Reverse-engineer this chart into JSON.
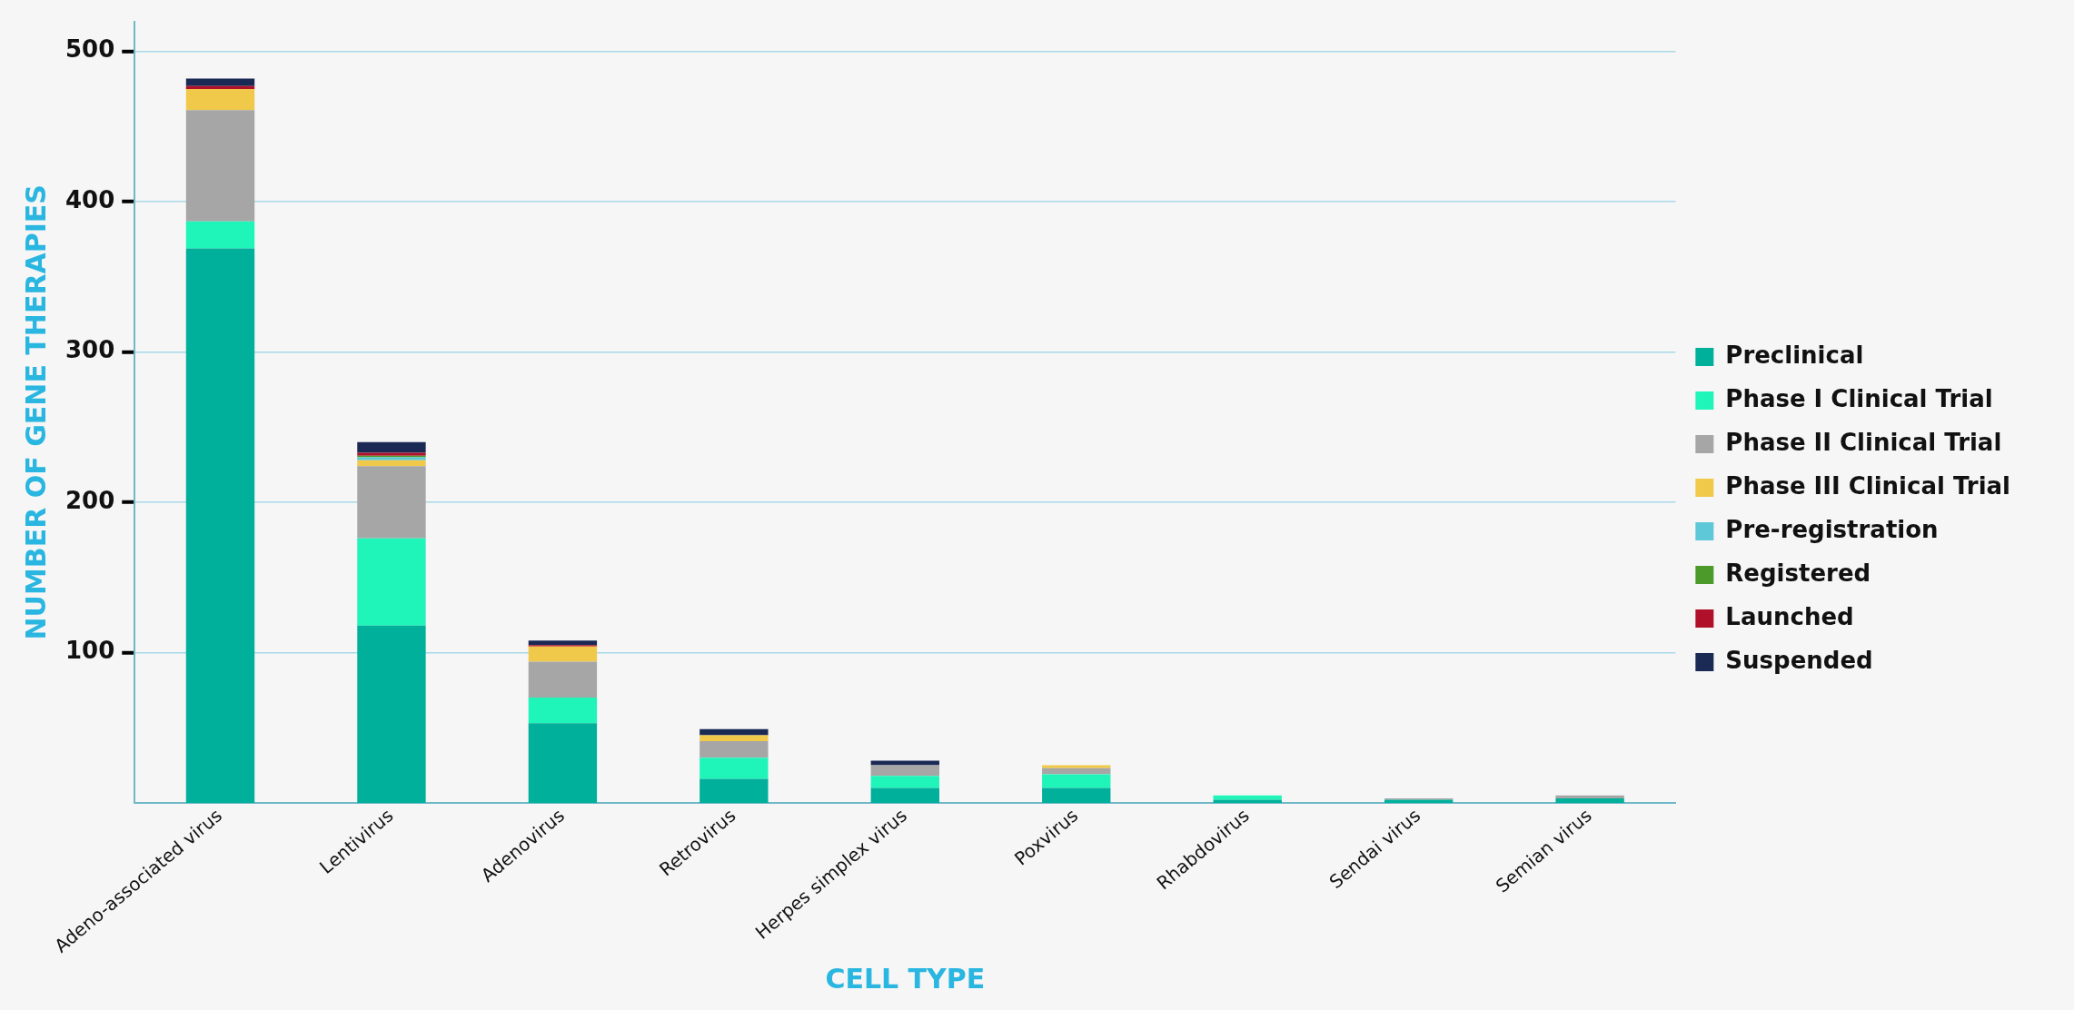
{
  "chart_data": {
    "type": "bar",
    "stacked": true,
    "xlabel": "CELL TYPE",
    "ylabel": "NUMBER OF GENE THERAPIES",
    "categories": [
      "Adeno-associated virus",
      "Lentivirus",
      "Adenovirus",
      "Retrovirus",
      "Herpes simplex virus",
      "Poxvirus",
      "Rhabdovirus",
      "Sendai virus",
      "Semian virus"
    ],
    "series": [
      {
        "name": "Preclinical",
        "color": "#00b09b",
        "values": [
          369,
          118,
          53,
          16,
          10,
          10,
          2,
          2,
          3
        ]
      },
      {
        "name": "Phase I Clinical Trial",
        "color": "#1ff5b8",
        "values": [
          18,
          58,
          17,
          14,
          8,
          9,
          3,
          0,
          0
        ]
      },
      {
        "name": "Phase II Clinical Trial",
        "color": "#a6a6a6",
        "values": [
          74,
          48,
          24,
          11,
          7,
          4,
          0,
          1,
          2
        ]
      },
      {
        "name": "Phase III Clinical Trial",
        "color": "#f0c94a",
        "values": [
          14,
          4,
          10,
          4,
          0,
          2,
          0,
          0,
          0
        ]
      },
      {
        "name": "Pre-registration",
        "color": "#5ec8d8",
        "values": [
          0,
          2,
          0,
          0,
          0,
          0,
          0,
          0,
          0
        ]
      },
      {
        "name": "Registered",
        "color": "#4c9a2a",
        "values": [
          0,
          1,
          0,
          0,
          0,
          0,
          0,
          0,
          0
        ]
      },
      {
        "name": "Launched",
        "color": "#b0102a",
        "values": [
          2,
          2,
          1,
          0,
          0,
          0,
          0,
          0,
          0
        ]
      },
      {
        "name": "Suspended",
        "color": "#1b2a55",
        "values": [
          5,
          7,
          3,
          4,
          3,
          0,
          0,
          0,
          0
        ]
      }
    ],
    "ylim": [
      0,
      520
    ],
    "yticks": [
      100,
      200,
      300,
      400,
      500
    ],
    "grid": "y",
    "legend": "right"
  }
}
